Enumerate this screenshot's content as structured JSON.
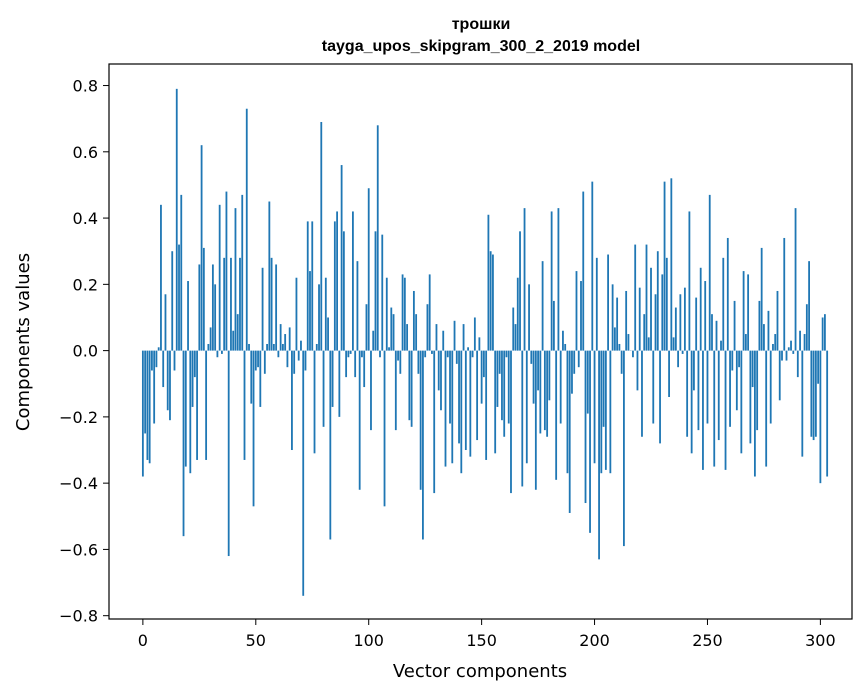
{
  "chart_data": {
    "type": "bar",
    "title": "трошки",
    "subtitle": "tayga_upos_skipgram_300_2_2019 model",
    "xlabel": "Vector components",
    "ylabel": "Components values",
    "xlim": [
      -15,
      314
    ],
    "ylim": [
      -0.81,
      0.865
    ],
    "xticks": [
      0,
      50,
      100,
      150,
      200,
      250,
      300
    ],
    "yticks": [
      -0.8,
      -0.6,
      -0.4,
      -0.2,
      0.0,
      0.2,
      0.4,
      0.6,
      0.8
    ],
    "ytick_labels": [
      "−0.8",
      "−0.6",
      "−0.4",
      "−0.2",
      "0.0",
      "0.2",
      "0.4",
      "0.6",
      "0.8"
    ],
    "grid": false,
    "legend": "none",
    "bar_color": "#1f77b4",
    "values": [
      -0.38,
      -0.25,
      -0.33,
      -0.34,
      -0.06,
      -0.22,
      -0.05,
      0.01,
      0.44,
      -0.11,
      0.17,
      -0.18,
      -0.21,
      0.3,
      -0.06,
      0.79,
      0.32,
      0.47,
      -0.56,
      -0.35,
      0.21,
      -0.37,
      -0.17,
      -0.08,
      -0.33,
      0.26,
      0.62,
      0.31,
      -0.33,
      0.02,
      0.07,
      0.26,
      0.2,
      -0.02,
      0.44,
      -0.01,
      0.28,
      0.48,
      -0.62,
      0.28,
      0.06,
      0.43,
      0.11,
      0.28,
      0.47,
      -0.33,
      0.73,
      0.02,
      -0.16,
      -0.47,
      -0.06,
      -0.05,
      -0.17,
      0.25,
      -0.07,
      0.02,
      0.45,
      0.28,
      0.02,
      0.26,
      -0.02,
      0.08,
      0.02,
      0.05,
      -0.05,
      0.07,
      -0.3,
      -0.07,
      0.22,
      -0.03,
      0.03,
      -0.74,
      -0.06,
      0.39,
      0.24,
      0.39,
      -0.31,
      0.02,
      0.2,
      0.69,
      -0.23,
      0.22,
      0.1,
      -0.57,
      -0.17,
      0.39,
      0.42,
      -0.2,
      0.56,
      0.36,
      -0.08,
      -0.02,
      -0.01,
      0.42,
      -0.08,
      0.27,
      -0.42,
      -0.02,
      -0.11,
      0.14,
      0.49,
      -0.24,
      0.06,
      0.36,
      0.68,
      -0.02,
      0.35,
      -0.47,
      0.22,
      0.01,
      0.13,
      0.11,
      -0.24,
      -0.03,
      -0.07,
      0.23,
      0.22,
      0.08,
      -0.21,
      -0.23,
      0.18,
      0.11,
      -0.07,
      -0.42,
      -0.57,
      -0.02,
      0.14,
      0.23,
      -0.01,
      -0.43,
      0.08,
      -0.12,
      -0.18,
      0.06,
      -0.35,
      -0.02,
      -0.22,
      -0.34,
      0.09,
      -0.04,
      -0.28,
      -0.37,
      0.08,
      -0.3,
      0.01,
      -0.32,
      -0.02,
      0.1,
      -0.27,
      0.04,
      -0.16,
      -0.08,
      -0.33,
      0.41,
      0.3,
      0.29,
      -0.31,
      -0.17,
      -0.07,
      -0.21,
      -0.26,
      -0.02,
      -0.22,
      -0.43,
      0.13,
      0.08,
      0.22,
      0.36,
      -0.41,
      0.43,
      -0.34,
      0.2,
      -0.04,
      -0.16,
      -0.42,
      -0.12,
      -0.25,
      0.27,
      -0.24,
      -0.26,
      -0.15,
      0.42,
      0.15,
      -0.39,
      0.43,
      -0.22,
      0.06,
      0.02,
      -0.37,
      -0.49,
      -0.13,
      -0.07,
      0.24,
      -0.05,
      0.21,
      0.48,
      -0.46,
      -0.19,
      -0.55,
      0.51,
      -0.34,
      0.28,
      -0.63,
      -0.37,
      -0.23,
      -0.36,
      0.29,
      -0.37,
      0.2,
      0.07,
      0.16,
      0.02,
      -0.07,
      -0.59,
      0.18,
      0.05,
      0.0,
      -0.02,
      0.32,
      -0.12,
      0.19,
      -0.26,
      0.11,
      0.32,
      0.04,
      0.25,
      -0.22,
      0.17,
      0.3,
      -0.28,
      0.23,
      0.51,
      0.28,
      -0.14,
      0.52,
      0.04,
      0.13,
      -0.05,
      0.17,
      -0.01,
      0.19,
      -0.26,
      0.42,
      -0.31,
      -0.12,
      0.16,
      -0.24,
      0.25,
      -0.36,
      0.21,
      -0.22,
      0.47,
      0.11,
      -0.35,
      0.09,
      -0.27,
      0.03,
      0.28,
      -0.36,
      0.34,
      -0.23,
      -0.06,
      0.15,
      -0.18,
      -0.05,
      -0.31,
      0.24,
      0.05,
      0.23,
      -0.28,
      -0.11,
      -0.38,
      -0.24,
      0.15,
      0.31,
      0.08,
      -0.35,
      0.12,
      -0.22,
      0.02,
      0.05,
      0.18,
      -0.15,
      -0.03,
      0.34,
      -0.03,
      0.01,
      0.03,
      -0.01,
      0.43,
      -0.08,
      0.06,
      -0.32,
      0.05,
      0.14,
      0.27,
      -0.26,
      -0.27,
      -0.26,
      -0.1,
      -0.4,
      0.1,
      0.11,
      -0.38
    ]
  }
}
